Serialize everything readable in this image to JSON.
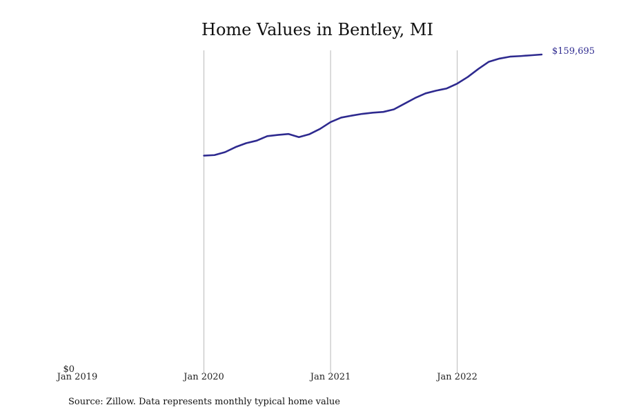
{
  "chart_data": {
    "type": "line",
    "title": "Home Values in Bentley, MI",
    "xlabel": "",
    "ylabel": "",
    "source": "Source: Zillow. Data represents monthly typical home value",
    "x_ticks": [
      "Jan 2019",
      "Jan 2020",
      "Jan 2021",
      "Jan 2022"
    ],
    "y_ticks": [
      "$0"
    ],
    "ylim": [
      0,
      159695
    ],
    "grid": "vertical",
    "legend": "none",
    "colors": {
      "line": "#2e2a8f",
      "grid": "#b8b8b8",
      "text": "#111111"
    },
    "end_label": "$159,695",
    "series": [
      {
        "x": [
          "2020-01",
          "2020-02",
          "2020-03",
          "2020-04",
          "2020-05",
          "2020-06",
          "2020-07",
          "2020-08",
          "2020-09",
          "2020-10",
          "2020-11",
          "2020-12",
          "2021-01",
          "2021-02",
          "2021-03",
          "2021-04",
          "2021-05",
          "2021-06",
          "2021-07",
          "2021-08",
          "2021-09",
          "2021-10",
          "2021-11",
          "2021-12",
          "2022-01",
          "2022-02",
          "2022-03",
          "2022-04",
          "2022-05",
          "2022-06",
          "2022-07",
          "2022-08",
          "2022-09"
        ],
        "values": [
          107900,
          108200,
          109700,
          112300,
          114300,
          115600,
          117900,
          118500,
          119000,
          117400,
          118900,
          121600,
          125100,
          127400,
          128400,
          129300,
          129900,
          130300,
          131600,
          134500,
          137400,
          139800,
          141200,
          142300,
          144800,
          148200,
          152300,
          156000,
          157600,
          158600,
          158900,
          159300,
          159695
        ]
      }
    ]
  }
}
